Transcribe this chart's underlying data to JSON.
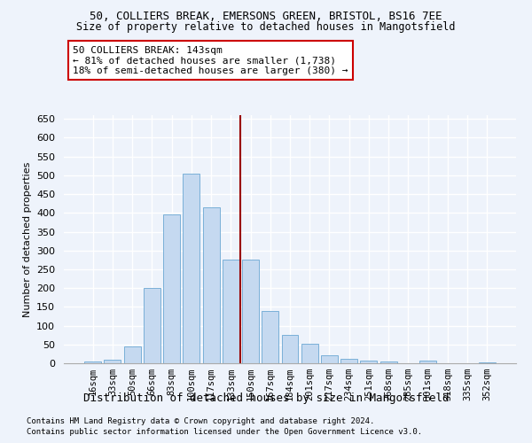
{
  "title_line1": "50, COLLIERS BREAK, EMERSONS GREEN, BRISTOL, BS16 7EE",
  "title_line2": "Size of property relative to detached houses in Mangotsfield",
  "xlabel": "Distribution of detached houses by size in Mangotsfield",
  "ylabel": "Number of detached properties",
  "footnote1": "Contains HM Land Registry data © Crown copyright and database right 2024.",
  "footnote2": "Contains public sector information licensed under the Open Government Licence v3.0.",
  "bar_labels": [
    "16sqm",
    "33sqm",
    "50sqm",
    "66sqm",
    "83sqm",
    "100sqm",
    "117sqm",
    "133sqm",
    "150sqm",
    "167sqm",
    "184sqm",
    "201sqm",
    "217sqm",
    "234sqm",
    "251sqm",
    "268sqm",
    "285sqm",
    "301sqm",
    "318sqm",
    "335sqm",
    "352sqm"
  ],
  "bar_values": [
    5,
    10,
    45,
    200,
    395,
    505,
    415,
    275,
    275,
    140,
    75,
    53,
    22,
    12,
    7,
    5,
    0,
    7,
    0,
    0,
    3
  ],
  "bar_color": "#c5d9f0",
  "bar_edge_color": "#7ab0d8",
  "background_color": "#eef3fb",
  "grid_color": "#ffffff",
  "vline_x_index": 8,
  "vline_color": "#990000",
  "annotation_text": "50 COLLIERS BREAK: 143sqm\n← 81% of detached houses are smaller (1,738)\n18% of semi-detached houses are larger (380) →",
  "annotation_box_color": "#cc0000",
  "annotation_box_bg": "#ffffff",
  "ylim": [
    0,
    660
  ],
  "yticks": [
    0,
    50,
    100,
    150,
    200,
    250,
    300,
    350,
    400,
    450,
    500,
    550,
    600,
    650
  ]
}
